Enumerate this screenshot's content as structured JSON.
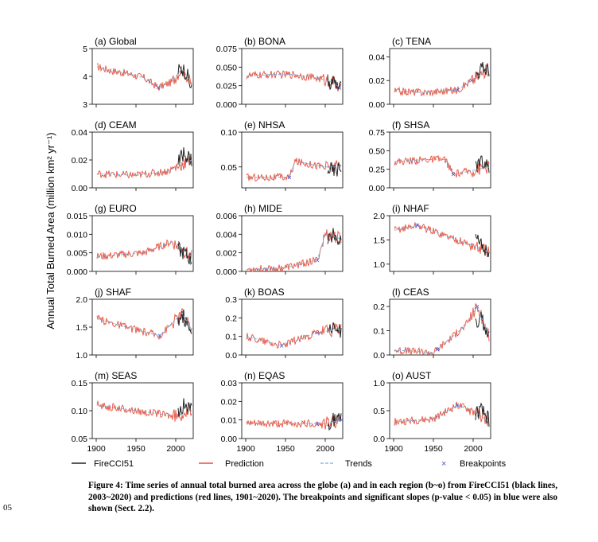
{
  "figure": {
    "ylabel": "Annual Total Burned Area (million km² yr⁻¹)",
    "legend": {
      "firecci": "FireCCI51",
      "prediction": "Prediction",
      "trends": "Trends",
      "breakpoints": "Breakpoints"
    },
    "colors": {
      "observed": "#222222",
      "prediction": "#e8503a",
      "trend": "#7aaee0",
      "breakpoint": "#4a5bd6"
    }
  },
  "caption": {
    "line_number": "05",
    "text": "Figure 4: Time series of annual total burned area across the globe (a) and in each region (b~o) from FireCCI51 (black lines, 2003~2020) and predictions (red lines, 1901~2020). The breakpoints and significant slopes (p-value < 0.05) in blue were also shown (Sect. 2.2)."
  },
  "chart_data": [
    {
      "type": "line",
      "title": "(a) Global",
      "ylim": [
        3,
        5
      ],
      "yticks": [
        "3",
        "4",
        "5"
      ],
      "xlim": [
        1895,
        2022
      ],
      "xticks": [
        "1900",
        "1950",
        "2000"
      ],
      "breakpoints_x": [
        1978
      ],
      "series": [
        {
          "name": "Prediction",
          "x": [
            1901,
            1920,
            1940,
            1960,
            1978,
            1995,
            2008,
            2020
          ],
          "y": [
            4.35,
            4.2,
            4.1,
            3.95,
            3.6,
            3.8,
            4.3,
            3.7
          ]
        },
        {
          "name": "FireCCI51",
          "x": [
            2003,
            2008,
            2014,
            2020
          ],
          "y": [
            4.2,
            4.3,
            4.1,
            3.5
          ]
        }
      ]
    },
    {
      "type": "line",
      "title": "(b) BONA",
      "ylim": [
        0,
        0.075
      ],
      "yticks": [
        "0.000",
        "0.025",
        "0.050",
        "0.075"
      ],
      "xlim": [
        1895,
        2022
      ],
      "xticks": [
        "1900",
        "1950",
        "2000"
      ],
      "breakpoints_x": [
        2018
      ],
      "series": [
        {
          "name": "Prediction",
          "x": [
            1901,
            1930,
            1960,
            1990,
            2010,
            2020
          ],
          "y": [
            0.038,
            0.04,
            0.04,
            0.035,
            0.03,
            0.02
          ]
        },
        {
          "name": "FireCCI51",
          "x": [
            2003,
            2010,
            2020
          ],
          "y": [
            0.03,
            0.03,
            0.02
          ]
        }
      ]
    },
    {
      "type": "line",
      "title": "(c) TENA",
      "ylim": [
        0,
        0.047
      ],
      "yticks": [
        "0.00",
        "0.02",
        "0.04"
      ],
      "xlim": [
        1895,
        2022
      ],
      "xticks": [
        "1900",
        "1950",
        "2000"
      ],
      "breakpoints_x": [
        1980,
        1998
      ],
      "series": [
        {
          "name": "Prediction",
          "x": [
            1901,
            1940,
            1980,
            1998,
            2020
          ],
          "y": [
            0.011,
            0.01,
            0.012,
            0.02,
            0.03
          ]
        },
        {
          "name": "FireCCI51",
          "x": [
            2003,
            2010,
            2020
          ],
          "y": [
            0.025,
            0.03,
            0.03
          ]
        }
      ]
    },
    {
      "type": "line",
      "title": "(d) CEAM",
      "ylim": [
        0,
        0.04
      ],
      "yticks": [
        "0.00",
        "0.02",
        "0.04"
      ],
      "xlim": [
        1895,
        2022
      ],
      "xticks": [
        "1900",
        "1950",
        "2000"
      ],
      "breakpoints_x": [],
      "series": [
        {
          "name": "Prediction",
          "x": [
            1901,
            1950,
            1990,
            2020
          ],
          "y": [
            0.01,
            0.009,
            0.012,
            0.02
          ]
        },
        {
          "name": "FireCCI51",
          "x": [
            2003,
            2010,
            2020
          ],
          "y": [
            0.018,
            0.025,
            0.02
          ]
        }
      ]
    },
    {
      "type": "line",
      "title": "(e) NHSA",
      "ylim": [
        0.02,
        0.1
      ],
      "yticks": [
        "0.05",
        "0.10"
      ],
      "xlim": [
        1895,
        2022
      ],
      "xticks": [
        "1900",
        "1950",
        "2000"
      ],
      "breakpoints_x": [
        1955
      ],
      "series": [
        {
          "name": "Prediction",
          "x": [
            1901,
            1955,
            1962,
            2000,
            2020
          ],
          "y": [
            0.035,
            0.035,
            0.058,
            0.05,
            0.05
          ]
        },
        {
          "name": "FireCCI51",
          "x": [
            2003,
            2010,
            2020
          ],
          "y": [
            0.05,
            0.045,
            0.05
          ]
        }
      ]
    },
    {
      "type": "line",
      "title": "(f) SHSA",
      "ylim": [
        0,
        0.75
      ],
      "yticks": [
        "0.00",
        "0.25",
        "0.50",
        "0.75"
      ],
      "xlim": [
        1895,
        2022
      ],
      "xticks": [
        "1900",
        "1950",
        "2000"
      ],
      "breakpoints_x": [
        1975
      ],
      "series": [
        {
          "name": "Prediction",
          "x": [
            1901,
            1940,
            1965,
            1975,
            2020
          ],
          "y": [
            0.35,
            0.38,
            0.38,
            0.18,
            0.28
          ]
        },
        {
          "name": "FireCCI51",
          "x": [
            2003,
            2010,
            2020
          ],
          "y": [
            0.3,
            0.35,
            0.25
          ]
        }
      ]
    },
    {
      "type": "line",
      "title": "(g) EURO",
      "ylim": [
        0,
        0.015
      ],
      "yticks": [
        "0.000",
        "0.005",
        "0.010",
        "0.015"
      ],
      "xlim": [
        1895,
        2022
      ],
      "xticks": [
        "1900",
        "1950",
        "2000"
      ],
      "breakpoints_x": [],
      "series": [
        {
          "name": "Prediction",
          "x": [
            1901,
            1960,
            1995,
            2020
          ],
          "y": [
            0.004,
            0.005,
            0.008,
            0.004
          ]
        },
        {
          "name": "FireCCI51",
          "x": [
            2003,
            2010,
            2020
          ],
          "y": [
            0.006,
            0.005,
            0.003
          ]
        }
      ]
    },
    {
      "type": "line",
      "title": "(h) MIDE",
      "ylim": [
        0,
        0.006
      ],
      "yticks": [
        "0.000",
        "0.002",
        "0.004",
        "0.006"
      ],
      "xlim": [
        1895,
        2022
      ],
      "xticks": [
        "1900",
        "1950",
        "2000"
      ],
      "breakpoints_x": [
        1990
      ],
      "series": [
        {
          "name": "Prediction",
          "x": [
            1901,
            1950,
            1990,
            2000,
            2020
          ],
          "y": [
            0.0002,
            0.0004,
            0.0012,
            0.004,
            0.0035
          ]
        },
        {
          "name": "FireCCI51",
          "x": [
            2003,
            2010,
            2020
          ],
          "y": [
            0.0035,
            0.004,
            0.0035
          ]
        }
      ]
    },
    {
      "type": "line",
      "title": "(i) NHAF",
      "ylim": [
        0.85,
        2.0
      ],
      "yticks": [
        "1.0",
        "1.5",
        "2.0"
      ],
      "xlim": [
        1895,
        2022
      ],
      "xticks": [
        "1900",
        "1950",
        "2000"
      ],
      "breakpoints_x": [
        1930
      ],
      "series": [
        {
          "name": "Prediction",
          "x": [
            1901,
            1930,
            1980,
            2020
          ],
          "y": [
            1.7,
            1.8,
            1.5,
            1.25
          ]
        },
        {
          "name": "FireCCI51",
          "x": [
            2003,
            2010,
            2020
          ],
          "y": [
            1.5,
            1.4,
            1.25
          ]
        }
      ]
    },
    {
      "type": "line",
      "title": "(j) SHAF",
      "ylim": [
        1.0,
        2.0
      ],
      "yticks": [
        "1.0",
        "1.5",
        "2.0"
      ],
      "xlim": [
        1895,
        2022
      ],
      "xticks": [
        "1900",
        "1950",
        "2000"
      ],
      "breakpoints_x": [
        1980
      ],
      "series": [
        {
          "name": "Prediction",
          "x": [
            1901,
            1950,
            1980,
            2008,
            2020
          ],
          "y": [
            1.65,
            1.45,
            1.35,
            1.75,
            1.45
          ]
        },
        {
          "name": "FireCCI51",
          "x": [
            2003,
            2010,
            2020
          ],
          "y": [
            1.65,
            1.7,
            1.35
          ]
        }
      ]
    },
    {
      "type": "line",
      "title": "(k) BOAS",
      "ylim": [
        0,
        0.3
      ],
      "yticks": [
        "0.0",
        "0.1",
        "0.2",
        "0.3"
      ],
      "xlim": [
        1895,
        2022
      ],
      "xticks": [
        "1900",
        "1950",
        "2000"
      ],
      "breakpoints_x": [
        1945,
        1990
      ],
      "series": [
        {
          "name": "Prediction",
          "x": [
            1901,
            1945,
            1990,
            2020
          ],
          "y": [
            0.1,
            0.05,
            0.12,
            0.14
          ]
        },
        {
          "name": "FireCCI51",
          "x": [
            2003,
            2010,
            2020
          ],
          "y": [
            0.14,
            0.14,
            0.13
          ]
        }
      ]
    },
    {
      "type": "line",
      "title": "(l) CEAS",
      "ylim": [
        0,
        0.23
      ],
      "yticks": [
        "0.0",
        "0.1",
        "0.2"
      ],
      "xlim": [
        1895,
        2022
      ],
      "xticks": [
        "1900",
        "1950",
        "2000"
      ],
      "breakpoints_x": [
        1955,
        2005
      ],
      "series": [
        {
          "name": "Prediction",
          "x": [
            1901,
            1950,
            1990,
            2005,
            2020
          ],
          "y": [
            0.02,
            0.01,
            0.12,
            0.2,
            0.08
          ]
        },
        {
          "name": "FireCCI51",
          "x": [
            2003,
            2010,
            2020
          ],
          "y": [
            0.12,
            0.15,
            0.08
          ]
        }
      ]
    },
    {
      "type": "line",
      "title": "(m) SEAS",
      "ylim": [
        0.05,
        0.15
      ],
      "yticks": [
        "0.05",
        "0.10",
        "0.15"
      ],
      "xlim": [
        1895,
        2022
      ],
      "xticks": [
        "1900",
        "1950",
        "2000"
      ],
      "breakpoints_x": [],
      "series": [
        {
          "name": "Prediction",
          "x": [
            1901,
            1950,
            2000,
            2020
          ],
          "y": [
            0.11,
            0.1,
            0.09,
            0.1
          ]
        },
        {
          "name": "FireCCI51",
          "x": [
            2003,
            2010,
            2020
          ],
          "y": [
            0.1,
            0.11,
            0.1
          ]
        }
      ]
    },
    {
      "type": "line",
      "title": "(n) EQAS",
      "ylim": [
        0,
        0.03
      ],
      "yticks": [
        "0.00",
        "0.01",
        "0.02",
        "0.03"
      ],
      "xlim": [
        1895,
        2022
      ],
      "xticks": [
        "1900",
        "1950",
        "2000"
      ],
      "breakpoints_x": [
        1990,
        2020
      ],
      "series": [
        {
          "name": "Prediction",
          "x": [
            1901,
            1950,
            2000,
            2020
          ],
          "y": [
            0.008,
            0.008,
            0.008,
            0.01
          ]
        },
        {
          "name": "FireCCI51",
          "x": [
            2003,
            2010,
            2020
          ],
          "y": [
            0.008,
            0.01,
            0.01
          ]
        }
      ]
    },
    {
      "type": "line",
      "title": "(o) AUST",
      "ylim": [
        0,
        1.0
      ],
      "yticks": [
        "0.0",
        "0.5",
        "1.0"
      ],
      "xlim": [
        1895,
        2022
      ],
      "xticks": [
        "1900",
        "1950",
        "2000"
      ],
      "breakpoints_x": [
        1980
      ],
      "series": [
        {
          "name": "Prediction",
          "x": [
            1901,
            1950,
            1980,
            2000,
            2020
          ],
          "y": [
            0.3,
            0.35,
            0.6,
            0.5,
            0.3
          ]
        },
        {
          "name": "FireCCI51",
          "x": [
            2003,
            2010,
            2020
          ],
          "y": [
            0.45,
            0.5,
            0.35
          ]
        }
      ]
    }
  ]
}
